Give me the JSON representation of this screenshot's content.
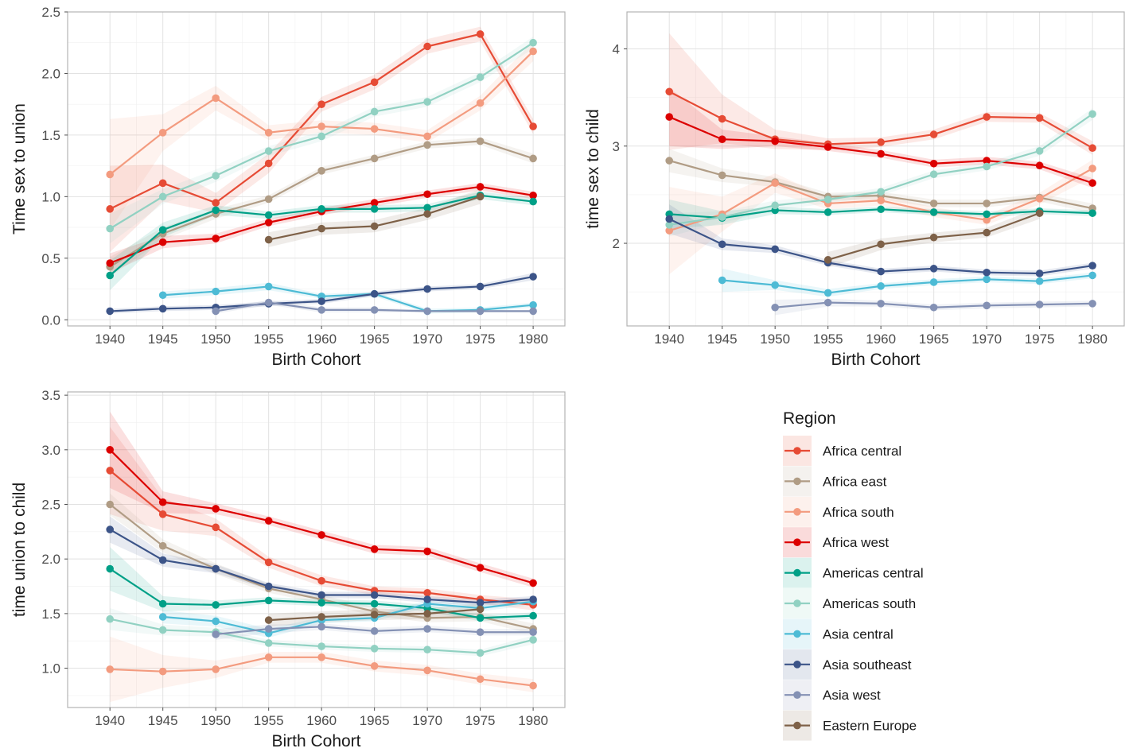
{
  "legend": {
    "title": "Region",
    "entries": [
      {
        "name": "Africa central",
        "color": "#E64B35"
      },
      {
        "name": "Africa east",
        "color": "#B09C85"
      },
      {
        "name": "Africa south",
        "color": "#F39B7F"
      },
      {
        "name": "Africa west",
        "color": "#DC0000"
      },
      {
        "name": "Americas central",
        "color": "#00A087"
      },
      {
        "name": "Americas south",
        "color": "#91D1C2"
      },
      {
        "name": "Asia central",
        "color": "#4DBBD5"
      },
      {
        "name": "Asia southeast",
        "color": "#3C5488"
      },
      {
        "name": "Asia west",
        "color": "#8491B4"
      },
      {
        "name": "Eastern Europe",
        "color": "#7E6148"
      }
    ]
  },
  "chart_data": [
    {
      "type": "line",
      "xlabel": "Birth Cohort",
      "ylabel": "Time sex to union",
      "x": [
        1940,
        1945,
        1950,
        1955,
        1960,
        1965,
        1970,
        1975,
        1980
      ],
      "xlim": [
        1936,
        1983
      ],
      "ylim": [
        -0.05,
        2.5
      ],
      "yticks": [
        0.0,
        0.5,
        1.0,
        1.5,
        2.0,
        2.5
      ],
      "ytick_labels": [
        "0.0",
        "0.5",
        "1.0",
        "1.5",
        "2.0",
        "2.5"
      ],
      "grid": true,
      "series": [
        {
          "name": "Africa central",
          "values": [
            0.9,
            1.11,
            0.95,
            1.27,
            1.75,
            1.93,
            2.22,
            2.32,
            1.57
          ],
          "band": [
            0.35,
            0.15,
            0.08,
            0.08,
            0.06,
            0.06,
            0.06,
            0.06,
            0.06
          ]
        },
        {
          "name": "Africa east",
          "values": [
            0.43,
            0.7,
            0.86,
            0.98,
            1.21,
            1.31,
            1.42,
            1.45,
            1.31
          ],
          "band": [
            0.08,
            0.05,
            0.04,
            0.03,
            0.03,
            0.03,
            0.03,
            0.03,
            0.04
          ]
        },
        {
          "name": "Africa south",
          "values": [
            1.18,
            1.52,
            1.8,
            1.52,
            1.57,
            1.55,
            1.49,
            1.76,
            2.18
          ],
          "band": [
            0.45,
            0.15,
            0.1,
            0.06,
            0.05,
            0.05,
            0.05,
            0.06,
            0.08
          ]
        },
        {
          "name": "Africa west",
          "values": [
            0.46,
            0.63,
            0.66,
            0.79,
            0.88,
            0.95,
            1.02,
            1.08,
            1.01
          ],
          "band": [
            0.08,
            0.05,
            0.04,
            0.03,
            0.03,
            0.03,
            0.03,
            0.03,
            0.03
          ]
        },
        {
          "name": "Americas central",
          "values": [
            0.36,
            0.73,
            0.89,
            0.85,
            0.9,
            0.9,
            0.91,
            1.01,
            0.96
          ],
          "band": [
            0.12,
            0.06,
            0.04,
            0.03,
            0.03,
            0.03,
            0.03,
            0.03,
            0.03
          ]
        },
        {
          "name": "Americas south",
          "values": [
            0.74,
            1.0,
            1.17,
            1.37,
            1.49,
            1.69,
            1.77,
            1.97,
            2.25
          ],
          "band": [
            0.12,
            0.06,
            0.05,
            0.04,
            0.04,
            0.04,
            0.04,
            0.04,
            0.05
          ]
        },
        {
          "name": "Asia central",
          "values": [
            null,
            0.2,
            0.23,
            0.27,
            0.19,
            0.21,
            0.07,
            0.08,
            0.12
          ],
          "band": [
            null,
            0.03,
            0.03,
            0.03,
            0.02,
            0.02,
            0.02,
            0.02,
            0.02
          ]
        },
        {
          "name": "Asia southeast",
          "values": [
            0.07,
            0.09,
            0.1,
            0.13,
            0.15,
            0.21,
            0.25,
            0.27,
            0.35
          ],
          "band": [
            0.02,
            0.02,
            0.02,
            0.02,
            0.02,
            0.02,
            0.02,
            0.02,
            0.03
          ]
        },
        {
          "name": "Asia west",
          "values": [
            null,
            null,
            0.07,
            0.14,
            0.08,
            0.08,
            0.07,
            0.07,
            0.07
          ],
          "band": [
            null,
            null,
            0.02,
            0.02,
            0.02,
            0.02,
            0.01,
            0.01,
            0.01
          ]
        },
        {
          "name": "Eastern Europe",
          "values": [
            null,
            null,
            null,
            0.65,
            0.74,
            0.76,
            0.86,
            1.0,
            null
          ],
          "band": [
            null,
            null,
            null,
            0.06,
            0.05,
            0.05,
            0.05,
            0.06,
            null
          ]
        }
      ]
    },
    {
      "type": "line",
      "xlabel": "Birth Cohort",
      "ylabel": "time sex to child",
      "x": [
        1940,
        1945,
        1950,
        1955,
        1960,
        1965,
        1970,
        1975,
        1980
      ],
      "xlim": [
        1936,
        1983
      ],
      "ylim": [
        1.15,
        4.38
      ],
      "yticks": [
        2,
        3,
        4
      ],
      "ytick_labels": [
        "2",
        "3",
        "4"
      ],
      "grid": true,
      "series": [
        {
          "name": "Africa central",
          "values": [
            3.56,
            3.28,
            3.07,
            3.02,
            3.04,
            3.12,
            3.3,
            3.29,
            2.98
          ],
          "band": [
            0.6,
            0.25,
            0.1,
            0.06,
            0.05,
            0.05,
            0.05,
            0.05,
            0.07
          ]
        },
        {
          "name": "Africa east",
          "values": [
            2.85,
            2.7,
            2.63,
            2.48,
            2.49,
            2.41,
            2.41,
            2.47,
            2.36
          ],
          "band": [
            0.12,
            0.07,
            0.05,
            0.04,
            0.04,
            0.04,
            0.04,
            0.04,
            0.05
          ]
        },
        {
          "name": "Africa south",
          "values": [
            2.13,
            2.3,
            2.62,
            2.41,
            2.44,
            2.32,
            2.24,
            2.46,
            2.77
          ],
          "band": [
            0.45,
            0.18,
            0.1,
            0.06,
            0.05,
            0.05,
            0.05,
            0.06,
            0.09
          ]
        },
        {
          "name": "Africa west",
          "values": [
            3.3,
            3.07,
            3.05,
            2.99,
            2.92,
            2.82,
            2.85,
            2.8,
            2.62
          ],
          "band": [
            0.3,
            0.1,
            0.05,
            0.04,
            0.04,
            0.04,
            0.04,
            0.04,
            0.05
          ]
        },
        {
          "name": "Americas central",
          "values": [
            2.3,
            2.26,
            2.34,
            2.32,
            2.35,
            2.32,
            2.3,
            2.33,
            2.31
          ],
          "band": [
            0.15,
            0.07,
            0.04,
            0.03,
            0.03,
            0.03,
            0.03,
            0.03,
            0.03
          ]
        },
        {
          "name": "Americas south",
          "values": [
            2.19,
            2.27,
            2.39,
            2.45,
            2.53,
            2.71,
            2.79,
            2.95,
            3.33
          ],
          "band": [
            0.12,
            0.06,
            0.05,
            0.04,
            0.04,
            0.04,
            0.04,
            0.05,
            0.06
          ]
        },
        {
          "name": "Asia central",
          "values": [
            null,
            1.62,
            1.57,
            1.49,
            1.56,
            1.6,
            1.63,
            1.61,
            1.67
          ],
          "band": [
            null,
            0.12,
            0.05,
            0.04,
            0.03,
            0.03,
            0.03,
            0.03,
            0.03
          ]
        },
        {
          "name": "Asia southeast",
          "values": [
            2.25,
            1.99,
            1.94,
            1.8,
            1.71,
            1.74,
            1.7,
            1.69,
            1.77
          ],
          "band": [
            0.15,
            0.06,
            0.04,
            0.03,
            0.03,
            0.03,
            0.03,
            0.03,
            0.03
          ]
        },
        {
          "name": "Asia west",
          "values": [
            null,
            null,
            1.34,
            1.39,
            1.38,
            1.34,
            1.36,
            1.37,
            1.38
          ],
          "band": [
            null,
            null,
            0.08,
            0.04,
            0.03,
            0.03,
            0.03,
            0.03,
            0.03
          ]
        },
        {
          "name": "Eastern Europe",
          "values": [
            null,
            null,
            null,
            1.83,
            1.99,
            2.06,
            2.11,
            2.31,
            null
          ],
          "band": [
            null,
            null,
            null,
            0.08,
            0.06,
            0.05,
            0.05,
            0.06,
            null
          ]
        }
      ]
    },
    {
      "type": "line",
      "xlabel": "Birth Cohort",
      "ylabel": "time union to child",
      "x": [
        1940,
        1945,
        1950,
        1955,
        1960,
        1965,
        1970,
        1975,
        1980
      ],
      "xlim": [
        1936,
        1983
      ],
      "ylim": [
        0.64,
        3.53
      ],
      "yticks": [
        1.0,
        1.5,
        2.0,
        2.5,
        3.0,
        3.5
      ],
      "ytick_labels": [
        "1.0",
        "1.5",
        "2.0",
        "2.5",
        "3.0",
        "3.5"
      ],
      "grid": true,
      "series": [
        {
          "name": "Africa central",
          "values": [
            2.81,
            2.41,
            2.29,
            1.97,
            1.8,
            1.71,
            1.69,
            1.63,
            1.58
          ],
          "band": [
            0.4,
            0.15,
            0.08,
            0.05,
            0.05,
            0.04,
            0.04,
            0.04,
            0.05
          ]
        },
        {
          "name": "Africa east",
          "values": [
            2.5,
            2.12,
            1.91,
            1.73,
            1.63,
            1.52,
            1.46,
            1.47,
            1.36
          ],
          "band": [
            0.1,
            0.06,
            0.05,
            0.04,
            0.04,
            0.04,
            0.04,
            0.04,
            0.05
          ]
        },
        {
          "name": "Africa south",
          "values": [
            0.99,
            0.97,
            0.99,
            1.1,
            1.1,
            1.02,
            0.98,
            0.9,
            0.84
          ],
          "band": [
            0.3,
            0.15,
            0.08,
            0.05,
            0.05,
            0.05,
            0.05,
            0.05,
            0.06
          ]
        },
        {
          "name": "Africa west",
          "values": [
            3.0,
            2.52,
            2.46,
            2.35,
            2.22,
            2.09,
            2.07,
            1.92,
            1.78
          ],
          "band": [
            0.35,
            0.1,
            0.05,
            0.04,
            0.04,
            0.04,
            0.04,
            0.04,
            0.04
          ]
        },
        {
          "name": "Americas central",
          "values": [
            1.91,
            1.59,
            1.58,
            1.62,
            1.6,
            1.59,
            1.55,
            1.46,
            1.48
          ],
          "band": [
            0.2,
            0.07,
            0.04,
            0.03,
            0.03,
            0.03,
            0.03,
            0.03,
            0.03
          ]
        },
        {
          "name": "Americas south",
          "values": [
            1.45,
            1.35,
            1.33,
            1.23,
            1.2,
            1.18,
            1.17,
            1.14,
            1.26
          ],
          "band": [
            0.1,
            0.05,
            0.04,
            0.03,
            0.03,
            0.03,
            0.03,
            0.03,
            0.04
          ]
        },
        {
          "name": "Asia central",
          "values": [
            null,
            1.47,
            1.43,
            1.32,
            1.44,
            1.46,
            1.59,
            1.55,
            1.61
          ],
          "band": [
            null,
            0.06,
            0.05,
            0.04,
            0.03,
            0.03,
            0.03,
            0.03,
            0.03
          ]
        },
        {
          "name": "Asia southeast",
          "values": [
            2.27,
            1.99,
            1.91,
            1.75,
            1.67,
            1.67,
            1.63,
            1.6,
            1.63
          ],
          "band": [
            0.12,
            0.06,
            0.04,
            0.03,
            0.03,
            0.03,
            0.03,
            0.03,
            0.03
          ]
        },
        {
          "name": "Asia west",
          "values": [
            null,
            null,
            1.31,
            1.36,
            1.38,
            1.34,
            1.36,
            1.33,
            1.33
          ],
          "band": [
            null,
            null,
            0.05,
            0.04,
            0.03,
            0.03,
            0.03,
            0.03,
            0.03
          ]
        },
        {
          "name": "Eastern Europe",
          "values": [
            null,
            null,
            null,
            1.44,
            1.47,
            1.49,
            1.5,
            1.54,
            null
          ],
          "band": [
            null,
            null,
            null,
            0.06,
            0.05,
            0.05,
            0.05,
            0.05,
            null
          ]
        }
      ]
    }
  ]
}
